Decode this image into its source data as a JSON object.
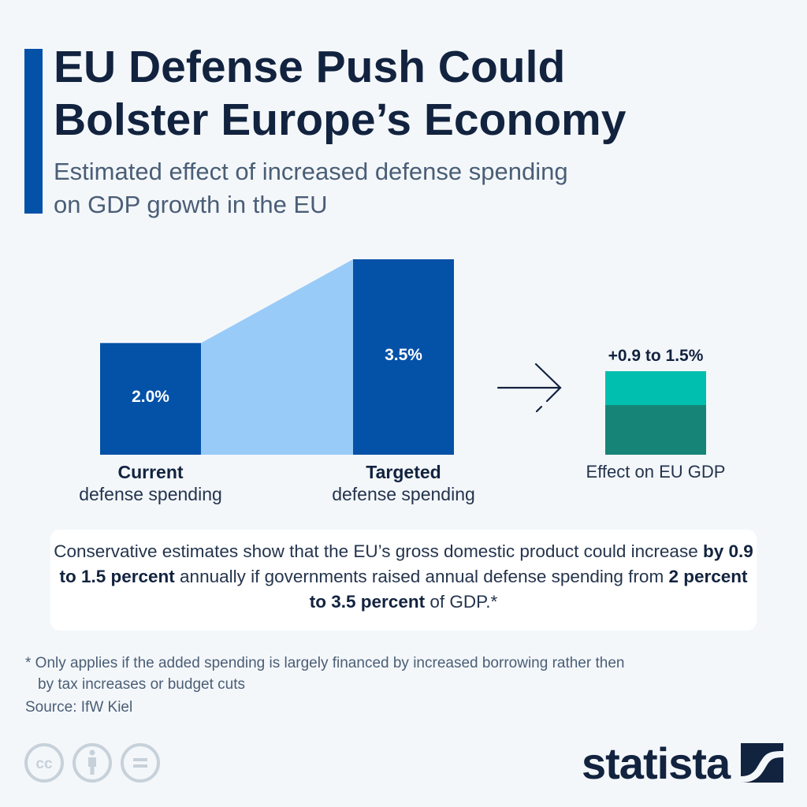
{
  "header": {
    "title_line1": "EU Defense Push Could",
    "title_line2": "Bolster Europe’s Economy",
    "subtitle_line1": "Estimated effect of increased defense spending",
    "subtitle_line2": "on GDP growth in the EU"
  },
  "colors": {
    "accent": "#0451a8",
    "bar": "#0451a8",
    "connector": "#99cbf8",
    "gdp_upper": "#00bfae",
    "gdp_lower": "#168577",
    "text_dark": "#12233f",
    "text_muted": "#4a5e76",
    "background": "#f4f7fa"
  },
  "chart_data": {
    "type": "bar",
    "title": "Estimated effect of increased defense spending on GDP growth in the EU",
    "categories": [
      "Current defense spending",
      "Targeted defense spending"
    ],
    "values": [
      2.0,
      3.5
    ],
    "unit": "% of GDP",
    "value_labels": [
      "2.0%",
      "3.5%"
    ],
    "category_labels": [
      {
        "bold": "Current",
        "regular": "defense spending"
      },
      {
        "bold": "Targeted",
        "regular": "defense spending"
      }
    ],
    "connector": "area between bars showing increase",
    "effect": {
      "label": "Effect on EU GDP",
      "value_label": "+0.9 to 1.5%",
      "range": [
        0.9,
        1.5
      ],
      "unit": "% GDP growth"
    }
  },
  "note": {
    "part1": "Conservative estimates show that the EU’s gross domestic product could increase ",
    "bold1": "by 0.9 to 1.5 percent",
    "part2": " annually if governments raised annual defense spending from ",
    "bold2": "2 percent to 3.5 percent",
    "part3": " of GDP.*"
  },
  "footer": {
    "footnote_line1": "* Only applies if the added spending is largely financed by increased borrowing rather then",
    "footnote_line2": "by tax increases or budget cuts",
    "source": "Source: IfW Kiel",
    "brand": "statista",
    "icons": [
      "creative-commons-icon",
      "attribution-icon",
      "no-derivatives-icon"
    ]
  }
}
